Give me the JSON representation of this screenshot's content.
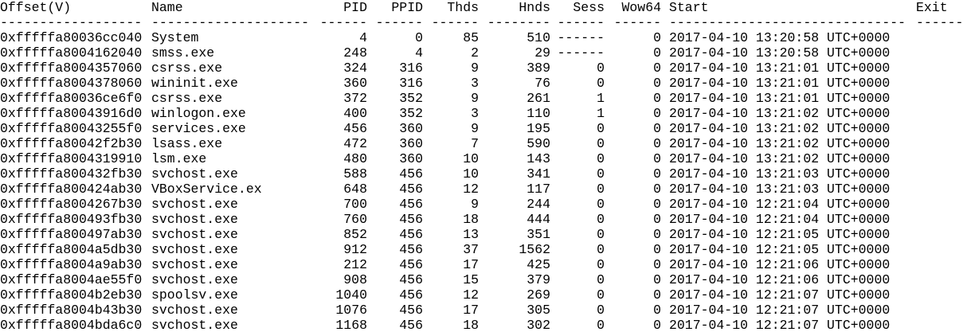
{
  "headers": {
    "offset": "Offset(V)",
    "name": "Name",
    "pid": "PID",
    "ppid": "PPID",
    "thds": "Thds",
    "hnds": "Hnds",
    "sess": "Sess",
    "wow64": "Wow64",
    "start": "Start",
    "exit": "Exit"
  },
  "separators": {
    "offset": "------------------",
    "name": "--------------------",
    "pid": "------",
    "ppid": "------",
    "thds": "------",
    "hnds": "--------",
    "sess": "------",
    "wow64": "------",
    "start": "------------------------------",
    "exit": "------"
  },
  "rows": [
    {
      "offset": "0xfffffa80036cc040",
      "name": "System",
      "pid": "4",
      "ppid": "0",
      "thds": "85",
      "hnds": "510",
      "sess": "------",
      "wow64": "0",
      "start": "2017-04-10 13:20:58 UTC+0000",
      "exit": ""
    },
    {
      "offset": "0xfffffa8004162040",
      "name": "smss.exe",
      "pid": "248",
      "ppid": "4",
      "thds": "2",
      "hnds": "29",
      "sess": "------",
      "wow64": "0",
      "start": "2017-04-10 13:20:58 UTC+0000",
      "exit": ""
    },
    {
      "offset": "0xfffffa8004357060",
      "name": "csrss.exe",
      "pid": "324",
      "ppid": "316",
      "thds": "9",
      "hnds": "389",
      "sess": "0",
      "wow64": "0",
      "start": "2017-04-10 13:21:01 UTC+0000",
      "exit": ""
    },
    {
      "offset": "0xfffffa8004378060",
      "name": "wininit.exe",
      "pid": "360",
      "ppid": "316",
      "thds": "3",
      "hnds": "76",
      "sess": "0",
      "wow64": "0",
      "start": "2017-04-10 13:21:01 UTC+0000",
      "exit": ""
    },
    {
      "offset": "0xfffffa80036ce6f0",
      "name": "csrss.exe",
      "pid": "372",
      "ppid": "352",
      "thds": "9",
      "hnds": "261",
      "sess": "1",
      "wow64": "0",
      "start": "2017-04-10 13:21:01 UTC+0000",
      "exit": ""
    },
    {
      "offset": "0xfffffa80043916d0",
      "name": "winlogon.exe",
      "pid": "400",
      "ppid": "352",
      "thds": "3",
      "hnds": "110",
      "sess": "1",
      "wow64": "0",
      "start": "2017-04-10 13:21:02 UTC+0000",
      "exit": ""
    },
    {
      "offset": "0xfffffa80043255f0",
      "name": "services.exe",
      "pid": "456",
      "ppid": "360",
      "thds": "9",
      "hnds": "195",
      "sess": "0",
      "wow64": "0",
      "start": "2017-04-10 13:21:02 UTC+0000",
      "exit": ""
    },
    {
      "offset": "0xfffffa80042f2b30",
      "name": "lsass.exe",
      "pid": "472",
      "ppid": "360",
      "thds": "7",
      "hnds": "590",
      "sess": "0",
      "wow64": "0",
      "start": "2017-04-10 13:21:02 UTC+0000",
      "exit": ""
    },
    {
      "offset": "0xfffffa8004319910",
      "name": "lsm.exe",
      "pid": "480",
      "ppid": "360",
      "thds": "10",
      "hnds": "143",
      "sess": "0",
      "wow64": "0",
      "start": "2017-04-10 13:21:02 UTC+0000",
      "exit": ""
    },
    {
      "offset": "0xfffffa800432fb30",
      "name": "svchost.exe",
      "pid": "588",
      "ppid": "456",
      "thds": "10",
      "hnds": "341",
      "sess": "0",
      "wow64": "0",
      "start": "2017-04-10 13:21:03 UTC+0000",
      "exit": ""
    },
    {
      "offset": "0xfffffa800424ab30",
      "name": "VBoxService.ex",
      "pid": "648",
      "ppid": "456",
      "thds": "12",
      "hnds": "117",
      "sess": "0",
      "wow64": "0",
      "start": "2017-04-10 13:21:03 UTC+0000",
      "exit": ""
    },
    {
      "offset": "0xfffffa8004267b30",
      "name": "svchost.exe",
      "pid": "700",
      "ppid": "456",
      "thds": "9",
      "hnds": "244",
      "sess": "0",
      "wow64": "0",
      "start": "2017-04-10 12:21:04 UTC+0000",
      "exit": ""
    },
    {
      "offset": "0xfffffa800493fb30",
      "name": "svchost.exe",
      "pid": "760",
      "ppid": "456",
      "thds": "18",
      "hnds": "444",
      "sess": "0",
      "wow64": "0",
      "start": "2017-04-10 12:21:04 UTC+0000",
      "exit": ""
    },
    {
      "offset": "0xfffffa800497ab30",
      "name": "svchost.exe",
      "pid": "852",
      "ppid": "456",
      "thds": "13",
      "hnds": "351",
      "sess": "0",
      "wow64": "0",
      "start": "2017-04-10 12:21:05 UTC+0000",
      "exit": ""
    },
    {
      "offset": "0xfffffa8004a5db30",
      "name": "svchost.exe",
      "pid": "912",
      "ppid": "456",
      "thds": "37",
      "hnds": "1562",
      "sess": "0",
      "wow64": "0",
      "start": "2017-04-10 12:21:05 UTC+0000",
      "exit": ""
    },
    {
      "offset": "0xfffffa8004a9ab30",
      "name": "svchost.exe",
      "pid": "212",
      "ppid": "456",
      "thds": "17",
      "hnds": "425",
      "sess": "0",
      "wow64": "0",
      "start": "2017-04-10 12:21:06 UTC+0000",
      "exit": ""
    },
    {
      "offset": "0xfffffa8004ae55f0",
      "name": "svchost.exe",
      "pid": "908",
      "ppid": "456",
      "thds": "15",
      "hnds": "379",
      "sess": "0",
      "wow64": "0",
      "start": "2017-04-10 12:21:06 UTC+0000",
      "exit": ""
    },
    {
      "offset": "0xfffffa8004b2eb30",
      "name": "spoolsv.exe",
      "pid": "1040",
      "ppid": "456",
      "thds": "12",
      "hnds": "269",
      "sess": "0",
      "wow64": "0",
      "start": "2017-04-10 12:21:07 UTC+0000",
      "exit": ""
    },
    {
      "offset": "0xfffffa8004b43b30",
      "name": "svchost.exe",
      "pid": "1076",
      "ppid": "456",
      "thds": "17",
      "hnds": "305",
      "sess": "0",
      "wow64": "0",
      "start": "2017-04-10 12:21:07 UTC+0000",
      "exit": ""
    },
    {
      "offset": "0xfffffa8004bda6c0",
      "name": "svchost.exe",
      "pid": "1168",
      "ppid": "456",
      "thds": "18",
      "hnds": "302",
      "sess": "0",
      "wow64": "0",
      "start": "2017-04-10 12:21:07 UTC+0000",
      "exit": ""
    }
  ]
}
